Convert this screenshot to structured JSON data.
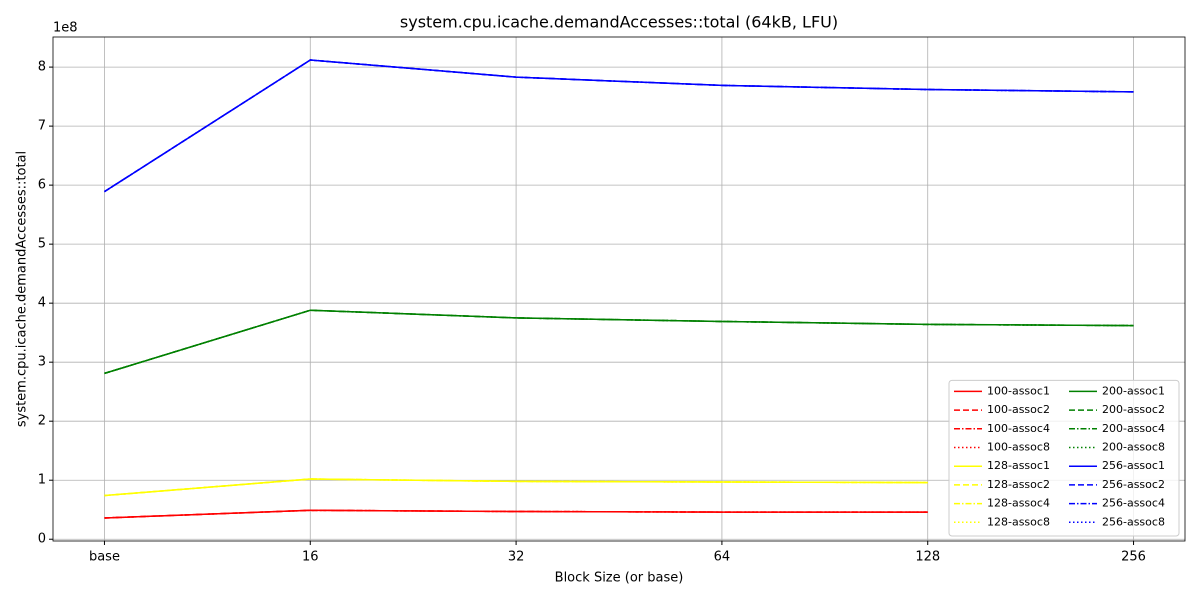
{
  "chart_data": {
    "type": "line",
    "title": "system.cpu.icache.demandAccesses::total (64kB, LFU)",
    "x_label": "Block Size (or base)",
    "y_label": "system.cpu.icache.demandAccesses::total",
    "y_multiplier": "1e8",
    "categories": [
      "base",
      "16",
      "32",
      "64",
      "128",
      "256"
    ],
    "ylim": [
      -0.03,
      8.51
    ],
    "yticks": [
      0,
      1,
      2,
      3,
      4,
      5,
      6,
      7,
      8
    ],
    "grid": true,
    "legend": "lower right",
    "legend_columns": 2,
    "series": [
      {
        "name": "100-assoc1",
        "color": "#ff0000",
        "linestyle": "solid",
        "values": [
          0.36,
          0.49,
          0.47,
          0.46,
          0.46,
          null
        ]
      },
      {
        "name": "100-assoc2",
        "color": "#ff0000",
        "linestyle": "dashed",
        "values": [
          0.36,
          0.49,
          0.47,
          0.46,
          0.46,
          null
        ]
      },
      {
        "name": "100-assoc4",
        "color": "#ff0000",
        "linestyle": "dashdot",
        "values": [
          0.36,
          0.49,
          0.47,
          0.46,
          0.46,
          null
        ]
      },
      {
        "name": "100-assoc8",
        "color": "#ff0000",
        "linestyle": "dotted",
        "values": [
          0.36,
          0.49,
          0.47,
          0.46,
          0.46,
          null
        ]
      },
      {
        "name": "128-assoc1",
        "color": "#ffff00",
        "linestyle": "solid",
        "values": [
          0.74,
          1.02,
          0.98,
          0.97,
          0.96,
          null
        ]
      },
      {
        "name": "128-assoc2",
        "color": "#ffff00",
        "linestyle": "dashed",
        "values": [
          0.74,
          1.02,
          0.98,
          0.97,
          0.96,
          null
        ]
      },
      {
        "name": "128-assoc4",
        "color": "#ffff00",
        "linestyle": "dashdot",
        "values": [
          0.74,
          1.02,
          0.98,
          0.97,
          0.96,
          null
        ]
      },
      {
        "name": "128-assoc8",
        "color": "#ffff00",
        "linestyle": "dotted",
        "values": [
          0.74,
          1.02,
          0.98,
          0.97,
          0.96,
          null
        ]
      },
      {
        "name": "200-assoc1",
        "color": "#008000",
        "linestyle": "solid",
        "values": [
          2.81,
          3.88,
          3.75,
          3.69,
          3.64,
          3.62
        ]
      },
      {
        "name": "200-assoc2",
        "color": "#008000",
        "linestyle": "dashed",
        "values": [
          2.81,
          3.88,
          3.75,
          3.69,
          3.64,
          3.62
        ]
      },
      {
        "name": "200-assoc4",
        "color": "#008000",
        "linestyle": "dashdot",
        "values": [
          2.81,
          3.88,
          3.75,
          3.69,
          3.64,
          3.62
        ]
      },
      {
        "name": "200-assoc8",
        "color": "#008000",
        "linestyle": "dotted",
        "values": [
          2.81,
          3.88,
          3.75,
          3.69,
          3.64,
          3.62
        ]
      },
      {
        "name": "256-assoc1",
        "color": "#0000ff",
        "linestyle": "solid",
        "values": [
          5.89,
          8.12,
          7.83,
          7.69,
          7.62,
          7.58
        ]
      },
      {
        "name": "256-assoc2",
        "color": "#0000ff",
        "linestyle": "dashed",
        "values": [
          5.89,
          8.12,
          7.83,
          7.69,
          7.62,
          7.58
        ]
      },
      {
        "name": "256-assoc4",
        "color": "#0000ff",
        "linestyle": "dashdot",
        "values": [
          5.89,
          8.12,
          7.83,
          7.69,
          7.62,
          7.58
        ]
      },
      {
        "name": "256-assoc8",
        "color": "#0000ff",
        "linestyle": "dotted",
        "values": [
          5.89,
          8.12,
          7.83,
          7.69,
          7.62,
          7.58
        ]
      }
    ]
  }
}
